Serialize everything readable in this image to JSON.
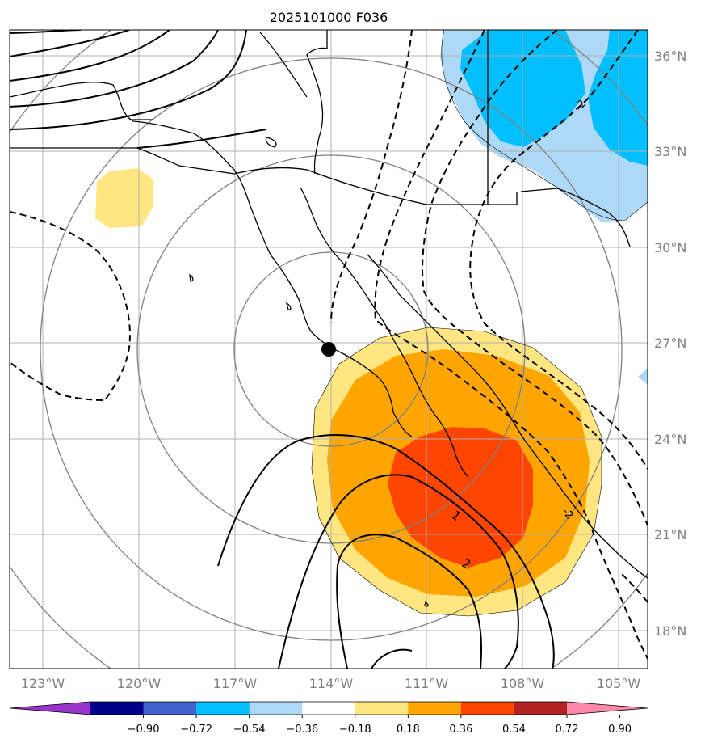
{
  "title": "2025101000 F036",
  "chart_data": {
    "type": "heatmap",
    "title": "2025101000 F036",
    "x_ticks": [
      "123°W",
      "120°W",
      "117°W",
      "114°W",
      "111°W",
      "108°W",
      "105°W"
    ],
    "x_tick_values": [
      -123,
      -120,
      -117,
      -114,
      -111,
      -108,
      -105
    ],
    "y_ticks": [
      "36°N",
      "33°N",
      "30°N",
      "27°N",
      "24°N",
      "21°N",
      "18°N"
    ],
    "y_tick_values": [
      36,
      33,
      30,
      27,
      24,
      21,
      18
    ],
    "xlim": [
      -124,
      -104
    ],
    "ylim": [
      16.8,
      36.8
    ],
    "grid": true,
    "marker": {
      "lon": -114.0,
      "lat": 26.8
    },
    "contour_labels": [
      "1",
      "2",
      "-2"
    ],
    "colorbar": {
      "ticks": [
        "−0.90",
        "−0.72",
        "−0.54",
        "−0.36",
        "−0.18",
        "0.18",
        "0.36",
        "0.54",
        "0.72",
        "0.90"
      ],
      "colors": [
        "#9933cc",
        "#00008b",
        "#3f62cd",
        "#00bfff",
        "#add8f6",
        "#ffffff",
        "#ffe680",
        "#ffa500",
        "#ff4500",
        "#b22222",
        "#ff88aa"
      ],
      "extend": "both"
    },
    "fields": [
      {
        "sign": "positive",
        "levels": [
          0.18,
          0.36,
          0.54
        ],
        "center_lon": -110.5,
        "center_lat": 22.8
      },
      {
        "sign": "negative",
        "levels": [
          -0.18,
          -0.36
        ],
        "center_lon": -109.0,
        "center_lat": 35.0
      },
      {
        "sign": "positive",
        "levels": [
          0.18
        ],
        "center_lon": -120.6,
        "center_lat": 31.9
      }
    ]
  }
}
